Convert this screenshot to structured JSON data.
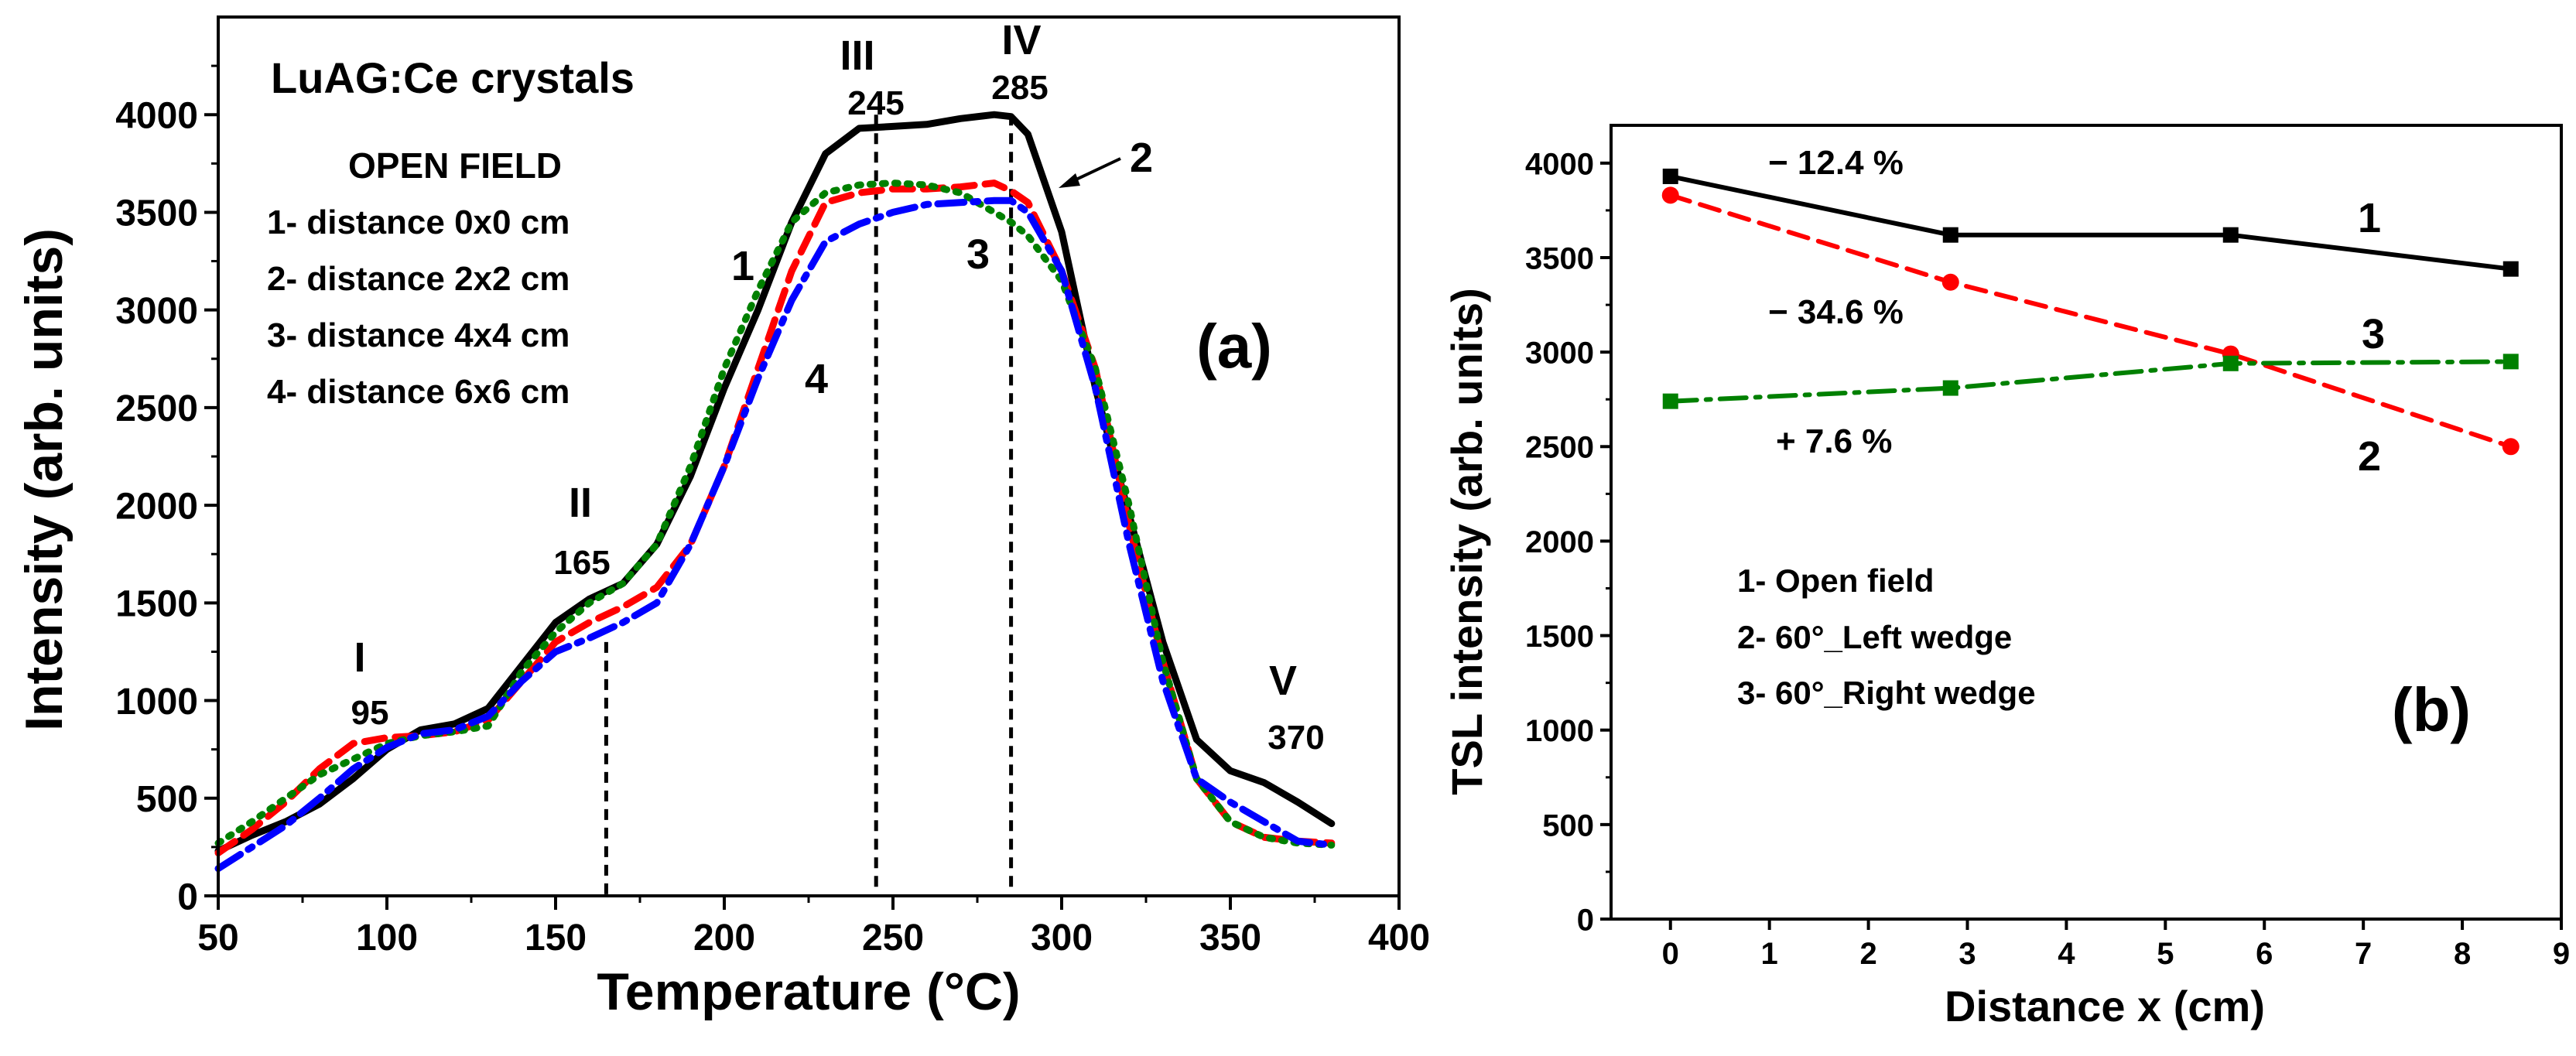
{
  "chart_data": [
    {
      "panel": "(a)",
      "type": "line",
      "xlabel": "Temperature (°C)",
      "ylabel": "Intensity (arb. units)",
      "xlim": [
        50,
        400
      ],
      "ylim": [
        0,
        4500
      ],
      "xticks": [
        50,
        100,
        150,
        200,
        250,
        300,
        350,
        400
      ],
      "yticks": [
        0,
        500,
        1000,
        1500,
        2000,
        2500,
        3000,
        3500,
        4000
      ],
      "title": "LuAG:Ce crystals",
      "legend_title": "OPEN FIELD",
      "legend_items": [
        "1- distance 0x0 cm",
        "2- distance 2x2 cm",
        "3- distance 4x4 cm",
        "4- distance 6x6 cm"
      ],
      "peaks": [
        {
          "roman": "I",
          "temp": "95"
        },
        {
          "roman": "II",
          "temp": "165"
        },
        {
          "roman": "III",
          "temp": "245"
        },
        {
          "roman": "IV",
          "temp": "285"
        },
        {
          "roman": "V",
          "temp": "370"
        }
      ],
      "vlines": [
        165,
        245,
        285
      ],
      "curve_labels": [
        "1",
        "2",
        "3",
        "4"
      ],
      "series": [
        {
          "name": "1",
          "color": "#000000",
          "style": "solid",
          "x": [
            50,
            60,
            70,
            80,
            90,
            100,
            110,
            120,
            130,
            140,
            150,
            160,
            170,
            180,
            190,
            200,
            210,
            220,
            230,
            240,
            250,
            260,
            270,
            280,
            285,
            290,
            300,
            310,
            320,
            330,
            340,
            350,
            360,
            370,
            380
          ],
          "y": [
            230,
            310,
            380,
            470,
            600,
            750,
            850,
            880,
            960,
            1180,
            1400,
            1520,
            1600,
            1800,
            2150,
            2600,
            3000,
            3450,
            3800,
            3930,
            3940,
            3950,
            3980,
            4000,
            3990,
            3900,
            3400,
            2600,
            1950,
            1300,
            800,
            640,
            580,
            480,
            370
          ]
        },
        {
          "name": "2",
          "color": "#ff0000",
          "style": "dashed",
          "x": [
            50,
            60,
            70,
            80,
            90,
            100,
            110,
            120,
            130,
            140,
            150,
            160,
            170,
            180,
            190,
            200,
            210,
            220,
            230,
            240,
            250,
            260,
            270,
            280,
            285,
            290,
            300,
            310,
            320,
            330,
            340,
            350,
            360,
            370,
            380
          ],
          "y": [
            220,
            340,
            480,
            650,
            780,
            810,
            820,
            840,
            900,
            1100,
            1300,
            1400,
            1480,
            1580,
            1800,
            2200,
            2700,
            3200,
            3550,
            3600,
            3620,
            3620,
            3630,
            3650,
            3610,
            3550,
            3200,
            2700,
            1900,
            1200,
            600,
            380,
            300,
            280,
            270
          ]
        },
        {
          "name": "3",
          "color": "#008000",
          "style": "dotted",
          "x": [
            50,
            60,
            70,
            80,
            90,
            100,
            110,
            120,
            130,
            140,
            150,
            160,
            170,
            180,
            190,
            200,
            210,
            220,
            230,
            240,
            250,
            260,
            270,
            280,
            285,
            290,
            300,
            310,
            320,
            330,
            340,
            350,
            360,
            370,
            380
          ],
          "y": [
            270,
            380,
            500,
            620,
            700,
            780,
            820,
            840,
            870,
            1150,
            1350,
            1500,
            1600,
            1800,
            2200,
            2700,
            3100,
            3450,
            3600,
            3640,
            3650,
            3640,
            3600,
            3500,
            3450,
            3380,
            3150,
            2700,
            2000,
            1200,
            600,
            380,
            300,
            270,
            260
          ]
        },
        {
          "name": "4",
          "color": "#0000ff",
          "style": "dashdot",
          "x": [
            50,
            60,
            70,
            80,
            90,
            100,
            110,
            120,
            130,
            140,
            150,
            160,
            170,
            180,
            190,
            200,
            210,
            220,
            230,
            240,
            250,
            260,
            270,
            280,
            285,
            290,
            300,
            310,
            320,
            330,
            340,
            350,
            360,
            370,
            380
          ],
          "y": [
            140,
            250,
            360,
            500,
            650,
            760,
            830,
            850,
            920,
            1100,
            1250,
            1320,
            1400,
            1500,
            1800,
            2200,
            2650,
            3050,
            3350,
            3440,
            3500,
            3540,
            3550,
            3560,
            3560,
            3500,
            3200,
            2600,
            1800,
            1100,
            600,
            480,
            380,
            280,
            260
          ]
        }
      ]
    },
    {
      "panel": "(b)",
      "type": "line",
      "xlabel": "Distance x (cm)",
      "ylabel": "TSL intensity (arb. units)",
      "xlim": [
        -0.6,
        9.0
      ],
      "ylim": [
        0,
        4200
      ],
      "xticks": [
        0,
        1,
        2,
        3,
        4,
        5,
        6,
        7,
        8,
        9
      ],
      "yticks": [
        0,
        500,
        1000,
        1500,
        2000,
        2500,
        3000,
        3500,
        4000
      ],
      "legend_items": [
        "1- Open field",
        "2- 60°_Left wedge",
        "3- 60°_Right wedge"
      ],
      "annotations": [
        "− 12.4 %",
        "− 34.6 %",
        "+ 7.6 %"
      ],
      "series": [
        {
          "name": "1",
          "color": "#000000",
          "style": "solid",
          "marker": "square",
          "x": [
            0,
            2.83,
            5.66,
            8.49
          ],
          "y": [
            3930,
            3620,
            3620,
            3440
          ]
        },
        {
          "name": "2",
          "color": "#ff0000",
          "style": "dashed",
          "marker": "circle",
          "x": [
            0,
            2.83,
            5.66,
            8.49
          ],
          "y": [
            3830,
            3370,
            2990,
            2500
          ]
        },
        {
          "name": "3",
          "color": "#008000",
          "style": "dashdot",
          "marker": "square",
          "x": [
            0,
            2.83,
            5.66,
            8.49
          ],
          "y": [
            2740,
            2810,
            2940,
            2950
          ]
        }
      ]
    }
  ]
}
